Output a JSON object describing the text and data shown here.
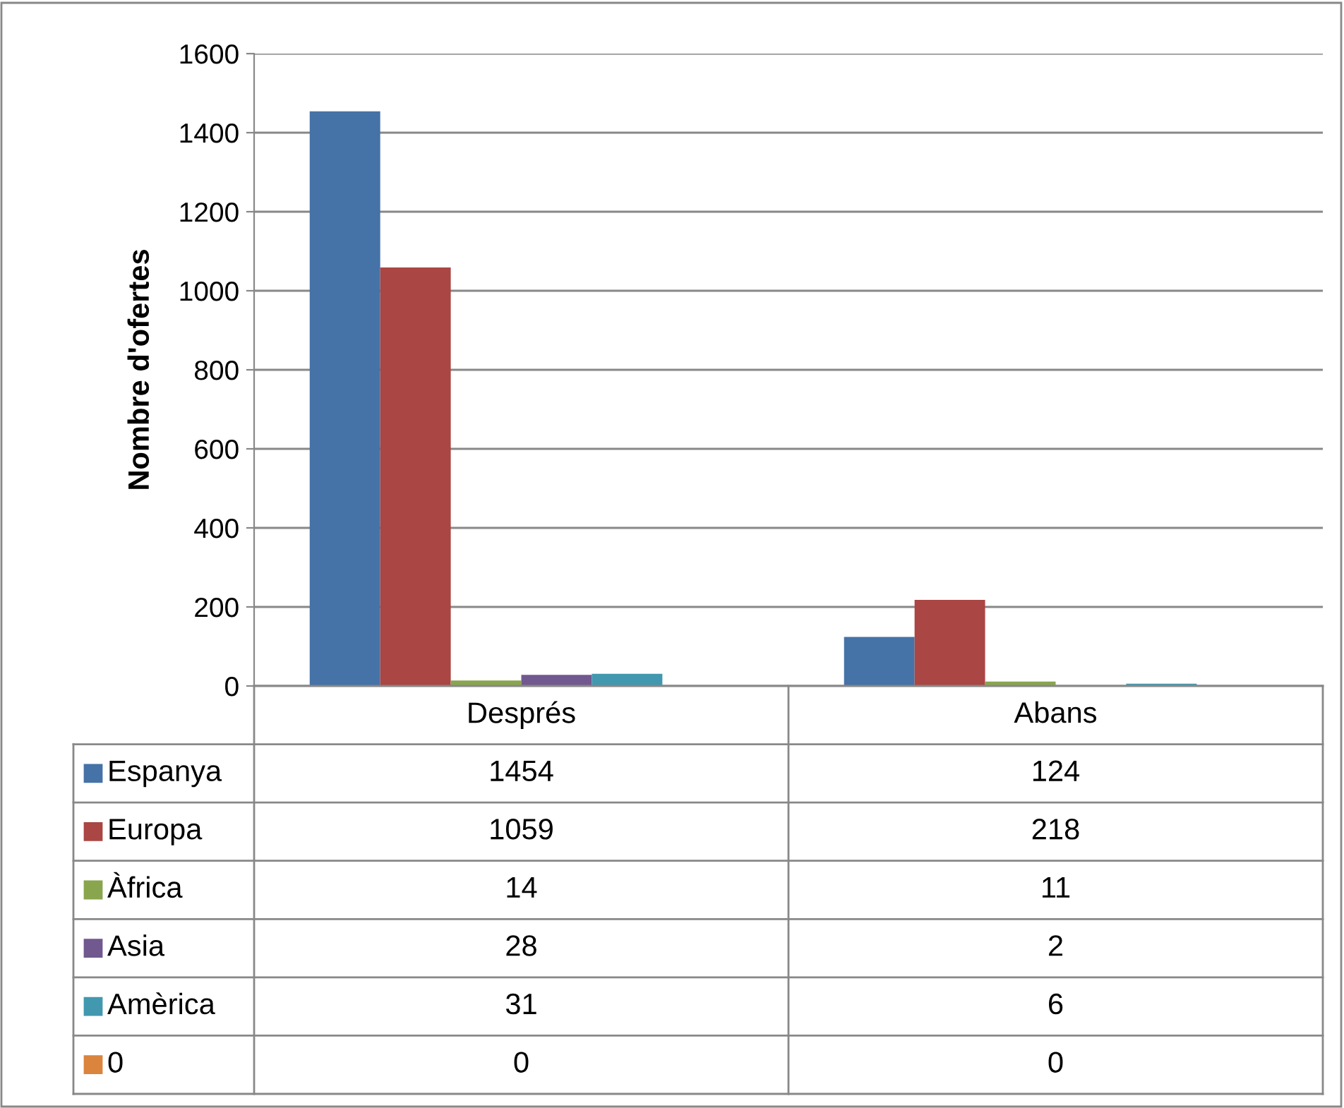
{
  "chart_data": {
    "type": "bar",
    "ylabel": "Nombre d'ofertes",
    "categories": [
      "Després",
      "Abans"
    ],
    "series": [
      {
        "name": "Espanya",
        "color": "#4572a7",
        "values": [
          1454,
          124
        ]
      },
      {
        "name": "Europa",
        "color": "#aa4643",
        "values": [
          1059,
          218
        ]
      },
      {
        "name": "Àfrica",
        "color": "#89a54e",
        "values": [
          14,
          11
        ]
      },
      {
        "name": "Asia",
        "color": "#71588f",
        "values": [
          28,
          2
        ]
      },
      {
        "name": "Amèrica",
        "color": "#4198af",
        "values": [
          31,
          6
        ]
      },
      {
        "name": "0",
        "color": "#db843d",
        "values": [
          0,
          0
        ]
      }
    ],
    "ylim": [
      0,
      1600
    ],
    "yticks": [
      0,
      200,
      400,
      600,
      800,
      1000,
      1200,
      1400,
      1600
    ],
    "grid": "y",
    "legend": "bottom",
    "data_labels": true
  }
}
